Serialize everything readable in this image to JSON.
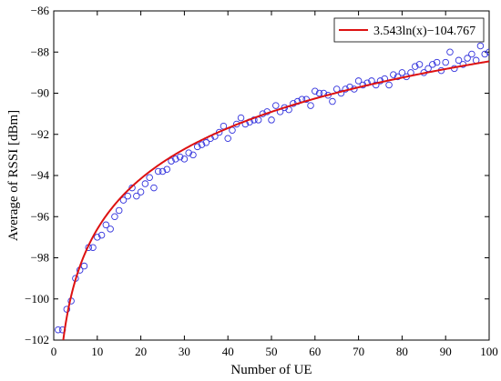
{
  "chart_data": {
    "type": "scatter",
    "title": "",
    "xlabel": "Number of UE",
    "ylabel": "Average of RSSI [dBm]",
    "xlim": [
      0,
      100
    ],
    "ylim": [
      -102,
      -86
    ],
    "xticks": [
      0,
      10,
      20,
      30,
      40,
      50,
      60,
      70,
      80,
      90,
      100
    ],
    "yticks": [
      -102,
      -100,
      -98,
      -96,
      -94,
      -92,
      -90,
      -88,
      -86
    ],
    "grid": false,
    "legend_position": "top-right",
    "colors": {
      "points": "#3333dd",
      "fit": "#dd1111"
    },
    "fit": {
      "name": "3.543ln(x)−104.767",
      "a": 3.543,
      "b": -104.767
    },
    "points": {
      "x": [
        1,
        2,
        3,
        4,
        5,
        6,
        7,
        8,
        9,
        10,
        11,
        12,
        13,
        14,
        15,
        16,
        17,
        18,
        19,
        20,
        21,
        22,
        23,
        24,
        25,
        26,
        27,
        28,
        29,
        30,
        31,
        32,
        33,
        34,
        35,
        36,
        37,
        38,
        39,
        40,
        41,
        42,
        43,
        44,
        45,
        46,
        47,
        48,
        49,
        50,
        51,
        52,
        53,
        54,
        55,
        56,
        57,
        58,
        59,
        60,
        61,
        62,
        63,
        64,
        65,
        66,
        67,
        68,
        69,
        70,
        71,
        72,
        73,
        74,
        75,
        76,
        77,
        78,
        79,
        80,
        81,
        82,
        83,
        84,
        85,
        86,
        87,
        88,
        89,
        90,
        91,
        92,
        93,
        94,
        95,
        96,
        97,
        98,
        99,
        100
      ],
      "y": [
        -101.5,
        -101.5,
        -100.5,
        -100.1,
        -99.0,
        -98.6,
        -98.4,
        -97.5,
        -97.5,
        -97.0,
        -96.9,
        -96.4,
        -96.6,
        -96.0,
        -95.7,
        -95.2,
        -95.0,
        -94.6,
        -95.0,
        -94.8,
        -94.4,
        -94.1,
        -94.6,
        -93.8,
        -93.8,
        -93.7,
        -93.3,
        -93.2,
        -93.1,
        -93.2,
        -92.9,
        -93.0,
        -92.6,
        -92.5,
        -92.4,
        -92.2,
        -92.1,
        -91.9,
        -91.6,
        -92.2,
        -91.8,
        -91.5,
        -91.2,
        -91.5,
        -91.4,
        -91.3,
        -91.3,
        -91.0,
        -90.9,
        -91.3,
        -90.6,
        -90.9,
        -90.7,
        -90.8,
        -90.5,
        -90.4,
        -90.3,
        -90.3,
        -90.6,
        -89.9,
        -90.0,
        -90.0,
        -90.1,
        -90.4,
        -89.8,
        -90.0,
        -89.8,
        -89.7,
        -89.8,
        -89.4,
        -89.6,
        -89.5,
        -89.4,
        -89.6,
        -89.4,
        -89.3,
        -89.6,
        -89.1,
        -89.2,
        -89.0,
        -89.2,
        -89.0,
        -88.7,
        -88.6,
        -89.0,
        -88.8,
        -88.6,
        -88.5,
        -88.9,
        -88.5,
        -88.0,
        -88.8,
        -88.4,
        -88.6,
        -88.3,
        -88.1,
        -88.4,
        -87.7,
        -88.1,
        -88.0
      ]
    }
  }
}
